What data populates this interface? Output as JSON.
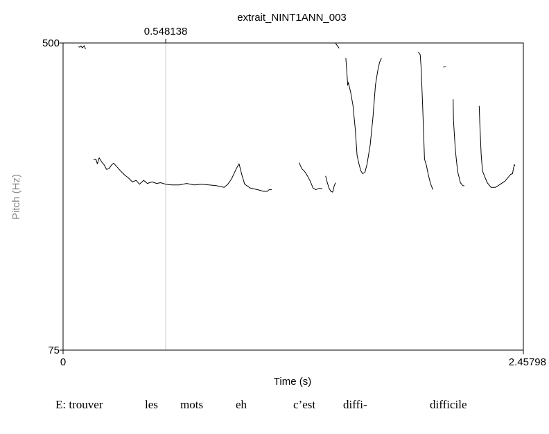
{
  "chart_data": {
    "type": "line",
    "title": "extrait_NINT1ANN_003",
    "xlabel": "Time (s)",
    "ylabel": "Pitch (Hz)",
    "xlim": [
      0,
      2.45798
    ],
    "ylim": [
      75,
      500
    ],
    "x_tick_labels": [
      "0",
      "2.45798"
    ],
    "y_tick_labels": [
      "75",
      "500"
    ],
    "cursor": {
      "x": 0.548138,
      "label": "0.548138"
    },
    "line_color": "#000000",
    "cursor_color": "#c8c8c8",
    "segments": [
      [
        [
          0.082,
          489
        ],
        [
          0.089,
          487
        ],
        [
          0.096,
          491
        ],
        [
          0.103,
          485
        ],
        [
          0.113,
          492
        ],
        [
          0.12,
          481
        ]
      ],
      [
        [
          0.163,
          243
        ],
        [
          0.175,
          244
        ],
        [
          0.183,
          237
        ],
        [
          0.193,
          246
        ],
        [
          0.206,
          240
        ],
        [
          0.218,
          236
        ],
        [
          0.232,
          229
        ],
        [
          0.245,
          230
        ],
        [
          0.258,
          235
        ],
        [
          0.27,
          238
        ],
        [
          0.29,
          232
        ],
        [
          0.31,
          226
        ],
        [
          0.33,
          221
        ],
        [
          0.35,
          217
        ],
        [
          0.37,
          212
        ],
        [
          0.39,
          214
        ],
        [
          0.408,
          209
        ],
        [
          0.43,
          214
        ],
        [
          0.45,
          210
        ],
        [
          0.475,
          212
        ],
        [
          0.5,
          210
        ],
        [
          0.52,
          211
        ],
        [
          0.548,
          209
        ],
        [
          0.58,
          208
        ],
        [
          0.62,
          208
        ],
        [
          0.66,
          210
        ],
        [
          0.7,
          208
        ],
        [
          0.74,
          209
        ],
        [
          0.78,
          208
        ],
        [
          0.82,
          207
        ],
        [
          0.86,
          205
        ],
        [
          0.88,
          209
        ],
        [
          0.9,
          216
        ],
        [
          0.925,
          230
        ],
        [
          0.94,
          237
        ],
        [
          0.955,
          221
        ],
        [
          0.97,
          209
        ],
        [
          1.0,
          204
        ],
        [
          1.04,
          202
        ],
        [
          1.07,
          200
        ],
        [
          1.09,
          200
        ],
        [
          1.1,
          202
        ],
        [
          1.115,
          202
        ]
      ],
      [
        [
          1.26,
          239
        ],
        [
          1.275,
          230
        ],
        [
          1.29,
          226
        ],
        [
          1.305,
          220
        ],
        [
          1.32,
          213
        ],
        [
          1.335,
          204
        ],
        [
          1.35,
          202
        ],
        [
          1.37,
          204
        ],
        [
          1.385,
          203
        ]
      ],
      [
        [
          1.402,
          220
        ],
        [
          1.41,
          212
        ],
        [
          1.42,
          204
        ],
        [
          1.43,
          200
        ],
        [
          1.44,
          199
        ],
        [
          1.448,
          207
        ],
        [
          1.455,
          211
        ]
      ],
      [
        [
          1.455,
          500
        ],
        [
          1.46,
          495
        ],
        [
          1.468,
          489
        ],
        [
          1.474,
          484
        ]
      ],
      [
        [
          1.51,
          455
        ],
        [
          1.515,
          420
        ],
        [
          1.52,
          385
        ],
        [
          1.523,
          392
        ],
        [
          1.535,
          370
        ],
        [
          1.548,
          340
        ],
        [
          1.56,
          295
        ],
        [
          1.57,
          250
        ],
        [
          1.58,
          237
        ],
        [
          1.59,
          227
        ],
        [
          1.6,
          223
        ],
        [
          1.612,
          225
        ],
        [
          1.623,
          236
        ],
        [
          1.64,
          266
        ],
        [
          1.655,
          317
        ],
        [
          1.668,
          385
        ],
        [
          1.68,
          420
        ],
        [
          1.69,
          443
        ],
        [
          1.7,
          455
        ]
      ],
      [
        [
          1.897,
          473
        ],
        [
          1.907,
          465
        ],
        [
          1.912,
          430
        ],
        [
          1.92,
          340
        ],
        [
          1.93,
          244
        ],
        [
          1.94,
          235
        ],
        [
          1.95,
          222
        ],
        [
          1.962,
          210
        ],
        [
          1.975,
          202
        ]
      ],
      [
        [
          2.03,
          431
        ],
        [
          2.045,
          432
        ]
      ],
      [
        [
          2.083,
          353
        ],
        [
          2.085,
          310
        ],
        [
          2.095,
          258
        ],
        [
          2.107,
          226
        ],
        [
          2.122,
          211
        ],
        [
          2.135,
          207
        ],
        [
          2.143,
          207
        ]
      ],
      [
        [
          2.222,
          339
        ],
        [
          2.226,
          300
        ],
        [
          2.233,
          250
        ],
        [
          2.24,
          227
        ],
        [
          2.25,
          220
        ],
        [
          2.265,
          211
        ],
        [
          2.285,
          205
        ],
        [
          2.31,
          205
        ],
        [
          2.335,
          209
        ],
        [
          2.36,
          213
        ],
        [
          2.38,
          219
        ],
        [
          2.39,
          222
        ],
        [
          2.4,
          223
        ],
        [
          2.405,
          230
        ],
        [
          2.41,
          236
        ],
        [
          2.413,
          234
        ]
      ]
    ]
  },
  "transcript": {
    "words": [
      "E: trouver",
      "les",
      "mots",
      "eh",
      "c’est",
      "diffi-",
      "difficile"
    ]
  }
}
